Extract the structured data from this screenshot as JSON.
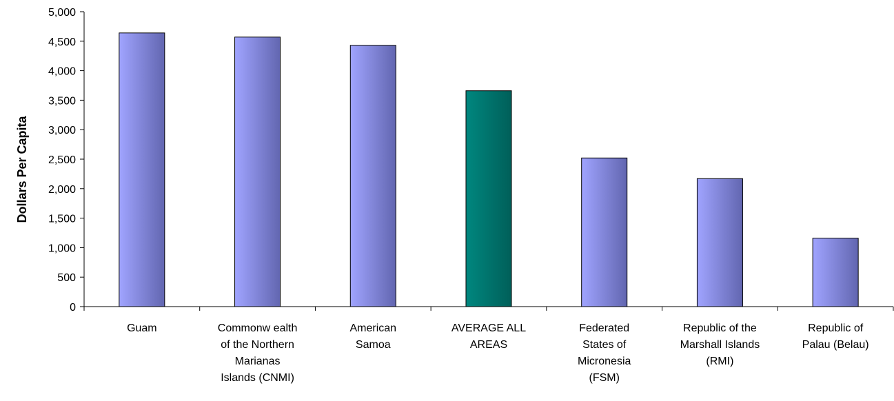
{
  "colors": {
    "bar_light": "#A0A4FF",
    "bar_dark": "#6266B0",
    "highlight_light": "#00877F",
    "highlight_dark": "#005F59",
    "axis": "#000000"
  },
  "chart_data": {
    "type": "bar",
    "ylabel": "Dollars Per Capita",
    "ylim": [
      0,
      5000
    ],
    "yticks": [
      0,
      500,
      1000,
      1500,
      2000,
      2500,
      3000,
      3500,
      4000,
      4500,
      5000
    ],
    "ytick_labels": [
      "0",
      "500",
      "1,000",
      "1,500",
      "2,000",
      "2,500",
      "3,000",
      "3,500",
      "4,000",
      "4,500",
      "5,000"
    ],
    "grid": false,
    "categories": [
      [
        "Guam"
      ],
      [
        "Commonw ealth",
        "of the Northern",
        "Marianas",
        "Islands (CNMI)"
      ],
      [
        "American",
        "Samoa"
      ],
      [
        "AVERAGE ALL",
        "AREAS"
      ],
      [
        "Federated",
        "States of",
        "Micronesia",
        "(FSM)"
      ],
      [
        "Republic of the",
        "Marshall Islands",
        "(RMI)"
      ],
      [
        "Republic of",
        "Palau (Belau)"
      ]
    ],
    "values": [
      4640,
      4570,
      4430,
      3660,
      2520,
      2170,
      1160
    ],
    "highlight_index": 3
  }
}
